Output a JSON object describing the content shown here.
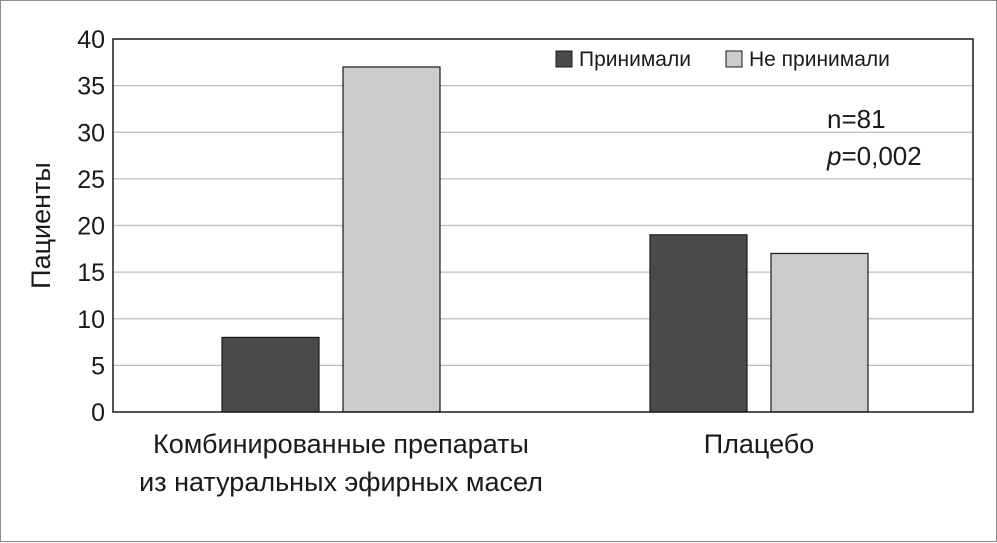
{
  "chart_data": {
    "type": "bar",
    "ylabel": "Пациенты",
    "ylim": [
      0,
      40
    ],
    "ytick_step": 5,
    "grid": true,
    "legend_position": "top-right",
    "categories": [
      [
        "Комбинированные препараты",
        "из натуральных эфирных масел"
      ],
      [
        "Плацебо"
      ]
    ],
    "series": [
      {
        "name": "Принимали",
        "color": "#4a4a4a",
        "values": [
          8,
          19
        ]
      },
      {
        "name": "Не принимали",
        "color": "#cccccc",
        "values": [
          37,
          17
        ]
      }
    ],
    "annotations": {
      "n": "n=81",
      "p_symbol": "p",
      "p_value": "=0,002"
    }
  }
}
